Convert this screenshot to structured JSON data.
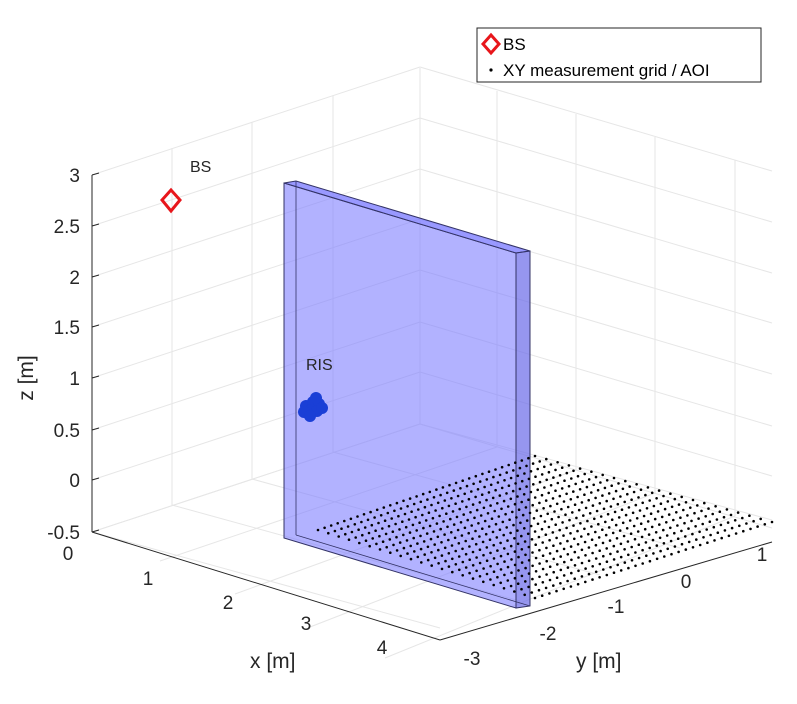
{
  "chart_data": {
    "type": "scatter3d",
    "axes": {
      "x": {
        "label": "x [m]",
        "range": [
          0,
          4.6
        ],
        "ticks": [
          "0",
          "1",
          "2",
          "3",
          "4"
        ]
      },
      "y": {
        "label": "y [m]",
        "range": [
          -3,
          2
        ],
        "ticks": [
          "-3",
          "-2",
          "-1",
          "0",
          "1"
        ]
      },
      "z": {
        "label": "z [m]",
        "range": [
          -0.5,
          3
        ],
        "ticks": [
          "-0.5",
          "0",
          "0.5",
          "1",
          "1.5",
          "2",
          "2.5",
          "3"
        ]
      }
    },
    "grid": true,
    "legend": {
      "position": "top-right",
      "entries": [
        {
          "label": "BS",
          "marker": "diamond",
          "color": "#e8161b"
        },
        {
          "label": "XY measurement grid / AOI",
          "marker": "point",
          "color": "#000000"
        }
      ]
    },
    "series": [
      {
        "name": "BS",
        "marker": "diamond",
        "color": "#e8161b",
        "points": [
          {
            "x": 0,
            "y": 0,
            "z": 3
          }
        ]
      },
      {
        "name": "XY measurement grid / AOI",
        "marker": "point",
        "color": "#000000",
        "grid": {
          "x": [
            1.6,
            4.6
          ],
          "y": [
            -2,
            1.4
          ],
          "z": 0,
          "rows": 22,
          "cols": 34
        }
      },
      {
        "name": "RIS",
        "marker": "filled-circle-cluster",
        "color": "#1a3fd6",
        "points": [
          {
            "x": 0.4,
            "y": -2.8,
            "z": 0.65
          }
        ]
      }
    ],
    "surfaces": [
      {
        "name": "wall",
        "color": "#7777ff",
        "alpha": 0.55,
        "x": [
          0,
          1.6
        ],
        "y": -2,
        "z": [
          -0.5,
          2.4
        ]
      }
    ],
    "annotations": [
      {
        "text": "BS",
        "x": 0,
        "y": 0,
        "z": 3
      },
      {
        "text": "RIS",
        "x": 0.4,
        "y": -2.8,
        "z": 0.65
      }
    ]
  }
}
